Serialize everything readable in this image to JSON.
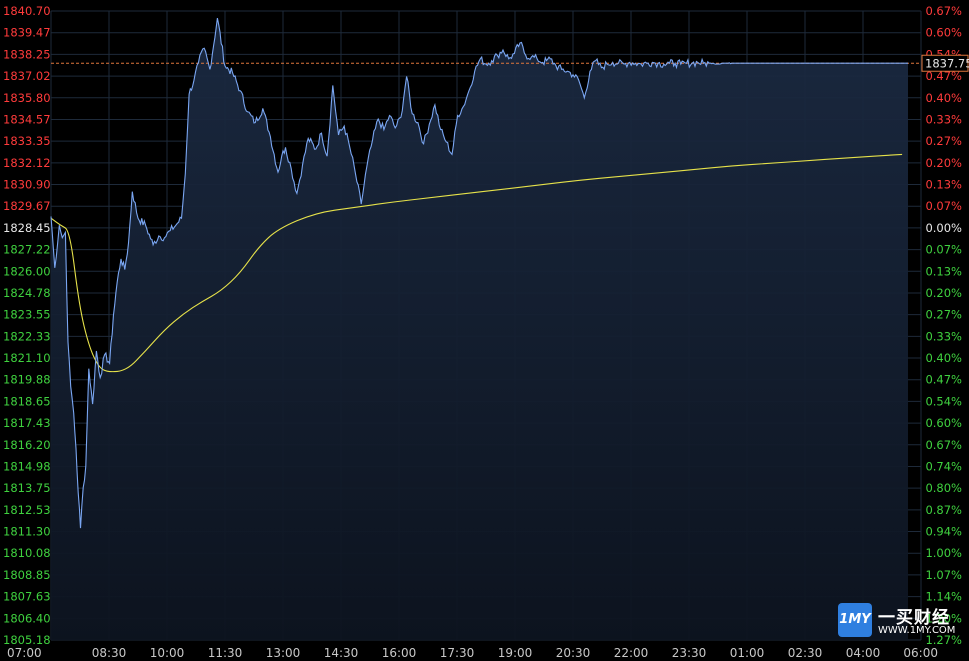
{
  "chart_data": {
    "type": "line",
    "title": "",
    "grid": true,
    "colors": {
      "background": "#000000",
      "price_line": "#6f9ff0",
      "area_fill": "#162236",
      "avg_line": "#e6e24a",
      "ref_line": "#e0763c",
      "up_label": "#ff3b3b",
      "down_label": "#3fd13f",
      "flat_label": "#e8e8e8",
      "grid": "#1e2a3a"
    },
    "x_ticks": [
      "07:00",
      "08:30",
      "10:00",
      "11:30",
      "13:00",
      "14:30",
      "16:00",
      "17:30",
      "19:00",
      "20:30",
      "22:00",
      "23:30",
      "01:00",
      "02:30",
      "04:00",
      "06:00"
    ],
    "y_ticks": [
      "1840.70",
      "1839.47",
      "1838.25",
      "1837.02",
      "1835.80",
      "1834.57",
      "1833.35",
      "1832.12",
      "1830.90",
      "1829.67",
      "1828.45",
      "1827.22",
      "1826.00",
      "1824.78",
      "1823.55",
      "1822.33",
      "1821.10",
      "1819.88",
      "1818.65",
      "1817.43",
      "1816.20",
      "1814.98",
      "1813.75",
      "1812.53",
      "1811.30",
      "1810.08",
      "1808.85",
      "1807.63",
      "1806.40",
      "1805.18"
    ],
    "pct_ticks": [
      "0.67%",
      "0.60%",
      "0.54%",
      "0.47%",
      "0.40%",
      "0.33%",
      "0.27%",
      "0.20%",
      "0.13%",
      "0.07%",
      "0.00%",
      "0.07%",
      "0.13%",
      "0.20%",
      "0.27%",
      "0.33%",
      "0.40%",
      "0.47%",
      "0.54%",
      "0.60%",
      "0.67%",
      "0.74%",
      "0.80%",
      "0.87%",
      "0.94%",
      "1.00%",
      "1.07%",
      "1.14%",
      "1.20%",
      "1.27%"
    ],
    "ylim": [
      1805.18,
      1840.7
    ],
    "base_price": 1828.45,
    "current_price": "1837.75",
    "x_range_hours": [
      0,
      23
    ],
    "price_series": {
      "t": [
        0,
        0.1,
        0.22,
        0.3,
        0.38,
        0.45,
        0.52,
        0.6,
        0.66,
        0.72,
        0.78,
        0.85,
        0.92,
        1.0,
        1.1,
        1.2,
        1.3,
        1.42,
        1.55,
        1.65,
        1.75,
        1.85,
        1.95,
        2.05,
        2.15,
        2.3,
        2.5,
        2.7,
        2.85,
        3.0,
        3.15,
        3.3,
        3.45,
        3.55,
        3.65,
        3.78,
        3.9,
        4.05,
        4.2,
        4.4,
        4.6,
        4.8,
        5.0,
        5.2,
        5.4,
        5.6,
        5.8,
        6.0,
        6.1,
        6.2,
        6.35,
        6.5,
        6.65,
        6.8,
        7.0,
        7.15,
        7.3,
        7.45,
        7.6,
        7.75,
        7.9,
        8.05,
        8.2,
        8.35,
        8.5,
        8.65,
        8.8,
        8.95,
        9.1,
        9.25,
        9.4,
        9.55,
        9.7,
        9.85,
        10.0,
        10.15,
        10.3,
        10.45,
        10.6,
        10.75,
        10.9,
        11.05,
        11.2,
        11.35,
        11.5,
        11.65,
        11.8,
        11.95,
        12.1,
        12.25,
        12.4,
        12.55,
        12.7,
        12.85,
        13.0,
        13.1,
        13.2,
        13.35,
        13.5,
        13.65,
        13.8,
        13.95,
        14.1,
        14.25,
        14.4,
        14.55,
        14.7,
        14.85,
        15.0,
        15.15,
        15.3,
        15.45,
        15.6,
        15.75,
        15.9,
        16.05,
        16.2,
        16.35,
        16.5,
        16.65,
        16.8,
        16.95,
        17.1,
        17.25,
        17.4,
        17.5,
        17.6,
        17.75,
        17.9,
        18.0
      ],
      "values": [
        1829.1,
        1826.2,
        1828.6,
        1827.9,
        1828.2,
        1822.0,
        1819.5,
        1818.0,
        1816.0,
        1813.5,
        1811.5,
        1813.8,
        1815.0,
        1820.5,
        1818.5,
        1821.5,
        1820.0,
        1821.3,
        1820.8,
        1823.5,
        1825.4,
        1826.7,
        1826.1,
        1827.6,
        1830.5,
        1829.0,
        1828.6,
        1827.5,
        1828.0,
        1827.9,
        1828.3,
        1828.6,
        1829.0,
        1831.5,
        1836.0,
        1836.8,
        1837.8,
        1838.6,
        1837.4,
        1840.3,
        1837.6,
        1837.2,
        1836.2,
        1835.0,
        1834.4,
        1835.2,
        1833.6,
        1831.6,
        1832.5,
        1833.0,
        1831.8,
        1830.4,
        1832.0,
        1833.5,
        1832.9,
        1833.8,
        1832.5,
        1836.5,
        1833.7,
        1834.2,
        1833.0,
        1831.5,
        1829.8,
        1831.9,
        1833.4,
        1834.6,
        1834.0,
        1834.8,
        1834.1,
        1834.7,
        1837.0,
        1834.9,
        1834.4,
        1833.2,
        1834.3,
        1835.4,
        1834.0,
        1833.3,
        1832.6,
        1834.8,
        1835.3,
        1836.2,
        1837.3,
        1838.0,
        1837.7,
        1837.9,
        1838.2,
        1838.5,
        1838.0,
        1838.3,
        1838.9,
        1838.2,
        1838.1,
        1838.0,
        1837.8,
        1837.9,
        1838.0,
        1837.6,
        1837.4,
        1837.3,
        1837.1,
        1836.8,
        1835.8,
        1837.3,
        1837.9,
        1837.5,
        1837.7,
        1837.8,
        1837.75,
        1837.7,
        1837.8,
        1837.75,
        1837.7,
        1837.75,
        1837.8,
        1837.75,
        1837.7,
        1837.75,
        1837.75,
        1837.7,
        1837.75,
        1837.75,
        1837.8,
        1837.75,
        1837.75,
        1837.75,
        1837.7,
        1837.75,
        1837.75,
        1837.75
      ]
    },
    "avg_series": {
      "t": [
        0,
        0.25,
        0.5,
        0.75,
        1.0,
        1.25,
        1.5,
        2.0,
        2.5,
        3.0,
        3.5,
        4.0,
        4.5,
        5.0,
        5.5,
        6.0,
        7.0,
        8.0,
        9.0,
        10.0,
        11.0,
        12.0,
        13.0,
        14.0,
        15.0,
        16.0,
        17.0,
        18.0,
        19.0,
        20.0,
        21.0,
        22.5
      ],
      "values": [
        1829.0,
        1828.6,
        1828.3,
        1824.0,
        1821.8,
        1820.6,
        1820.3,
        1820.4,
        1821.5,
        1822.7,
        1823.6,
        1824.3,
        1824.9,
        1825.9,
        1827.4,
        1828.4,
        1829.3,
        1829.6,
        1829.9,
        1830.15,
        1830.4,
        1830.65,
        1830.9,
        1831.15,
        1831.35,
        1831.55,
        1831.75,
        1831.95,
        1832.1,
        1832.25,
        1832.4,
        1832.6
      ]
    }
  },
  "brand": {
    "logo_mark": "1MY",
    "name": "一买财经",
    "url": "WWW.1MY.COM"
  }
}
